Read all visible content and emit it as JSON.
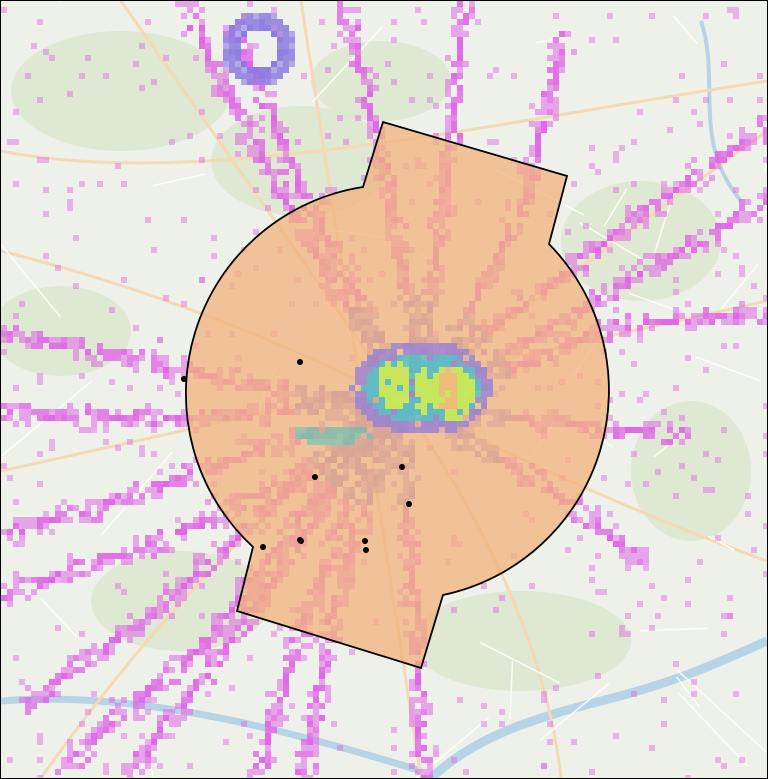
{
  "map": {
    "basemap": {
      "land_color": "#eef1ea",
      "forest_color": "#d9e6cc",
      "water_color": "#b7d3e6",
      "road_color": "#f4d9b3",
      "minor_road_color": "#ffffff"
    },
    "zone": {
      "fill_color": "#f2b27c",
      "stroke_color": "#000000"
    },
    "density_layer": {
      "low_color": "#e066e6",
      "mid_color": "#8a7ae0",
      "high_color": "#4fc7c0",
      "peak_color": "#d8ee4a",
      "max_color": "#f0b87a"
    },
    "markers": {
      "color": "#000000",
      "count": 10
    }
  }
}
